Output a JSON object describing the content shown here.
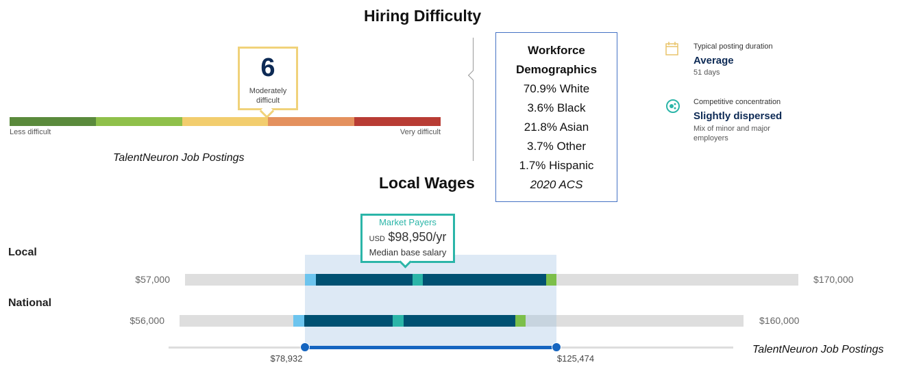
{
  "hiring_difficulty": {
    "title": "Hiring Difficulty",
    "score": 6,
    "score_label": "Moderately difficult",
    "scale_low": "Less difficult",
    "scale_high": "Very difficult",
    "source": "TalentNeuron Job Postings"
  },
  "demographics": {
    "title_line1": "Workforce",
    "title_line2": "Demographics",
    "rows": [
      "70.9% White",
      "3.6% Black",
      "21.8% Asian",
      "3.7% Other",
      "1.7% Hispanic"
    ],
    "source": "2020 ACS"
  },
  "insights": [
    {
      "label": "Typical posting duration",
      "value": "Average",
      "detail": "51 days"
    },
    {
      "label": "Competitive concentration",
      "value": "Slightly dispersed",
      "detail": "Mix of minor and major employers"
    }
  ],
  "wages": {
    "title": "Local Wages",
    "callout": {
      "title": "Market Payers",
      "currency": "USD",
      "amount": "$98,950/yr",
      "caption": "Median base salary"
    },
    "local": {
      "label": "Local",
      "min": "$57,000",
      "max": "$170,000"
    },
    "national": {
      "label": "National",
      "min": "$56,000",
      "max": "$160,000"
    },
    "range_low": "$78,932",
    "range_high": "$125,474",
    "source": "TalentNeuron Job Postings"
  }
}
